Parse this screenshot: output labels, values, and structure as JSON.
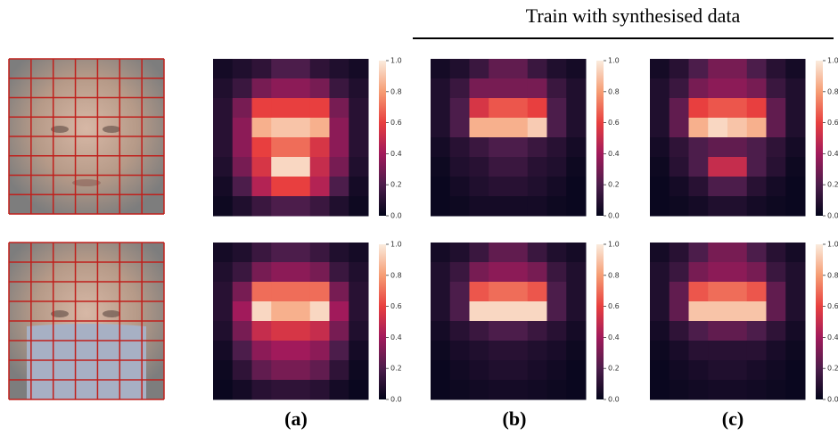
{
  "header": {
    "title": "Train with synthesised data"
  },
  "panel_labels": [
    "(a)",
    "(b)",
    "(c)"
  ],
  "chart_data": [
    {
      "type": "heatmap",
      "clim": [
        0,
        1
      ],
      "cticks": [
        {
          "value": 0,
          "label": "0.0"
        },
        {
          "value": 0.2,
          "label": "0.2"
        },
        {
          "value": 0.4,
          "label": "0.4"
        },
        {
          "value": 0.6,
          "label": "0.6"
        },
        {
          "value": 0.8,
          "label": "0.8"
        },
        {
          "value": 1,
          "label": "1.0"
        }
      ],
      "values": [
        [
          0.05,
          0.08,
          0.12,
          0.2,
          0.2,
          0.12,
          0.08,
          0.05
        ],
        [
          0.08,
          0.15,
          0.3,
          0.35,
          0.35,
          0.3,
          0.15,
          0.08
        ],
        [
          0.1,
          0.3,
          0.6,
          0.6,
          0.6,
          0.6,
          0.3,
          0.1
        ],
        [
          0.1,
          0.35,
          0.85,
          0.9,
          0.9,
          0.85,
          0.35,
          0.1
        ],
        [
          0.1,
          0.35,
          0.6,
          0.7,
          0.7,
          0.55,
          0.35,
          0.1
        ],
        [
          0.08,
          0.3,
          0.55,
          0.95,
          0.95,
          0.5,
          0.3,
          0.08
        ],
        [
          0.05,
          0.2,
          0.45,
          0.6,
          0.6,
          0.45,
          0.2,
          0.05
        ],
        [
          0.03,
          0.08,
          0.15,
          0.2,
          0.2,
          0.15,
          0.08,
          0.03
        ]
      ]
    },
    {
      "type": "heatmap",
      "clim": [
        0,
        1
      ],
      "cticks": [
        {
          "value": 0,
          "label": "0.0"
        },
        {
          "value": 0.2,
          "label": "0.2"
        },
        {
          "value": 0.4,
          "label": "0.4"
        },
        {
          "value": 0.6,
          "label": "0.6"
        },
        {
          "value": 0.8,
          "label": "0.8"
        },
        {
          "value": 1,
          "label": "1.0"
        }
      ],
      "values": [
        [
          0.05,
          0.08,
          0.15,
          0.25,
          0.25,
          0.15,
          0.08,
          0.05
        ],
        [
          0.08,
          0.15,
          0.3,
          0.3,
          0.3,
          0.3,
          0.15,
          0.08
        ],
        [
          0.08,
          0.2,
          0.55,
          0.65,
          0.65,
          0.6,
          0.2,
          0.08
        ],
        [
          0.08,
          0.2,
          0.85,
          0.85,
          0.85,
          0.92,
          0.2,
          0.08
        ],
        [
          0.05,
          0.1,
          0.15,
          0.2,
          0.2,
          0.15,
          0.1,
          0.05
        ],
        [
          0.03,
          0.08,
          0.1,
          0.15,
          0.15,
          0.1,
          0.08,
          0.03
        ],
        [
          0.02,
          0.05,
          0.08,
          0.1,
          0.1,
          0.08,
          0.05,
          0.02
        ],
        [
          0.02,
          0.03,
          0.05,
          0.05,
          0.05,
          0.05,
          0.03,
          0.02
        ]
      ]
    },
    {
      "type": "heatmap",
      "clim": [
        0,
        1
      ],
      "cticks": [
        {
          "value": 0,
          "label": "0.0"
        },
        {
          "value": 0.2,
          "label": "0.2"
        },
        {
          "value": 0.4,
          "label": "0.4"
        },
        {
          "value": 0.6,
          "label": "0.6"
        },
        {
          "value": 0.8,
          "label": "0.8"
        },
        {
          "value": 1,
          "label": "1.0"
        }
      ],
      "values": [
        [
          0.05,
          0.1,
          0.2,
          0.3,
          0.3,
          0.2,
          0.1,
          0.05
        ],
        [
          0.08,
          0.15,
          0.3,
          0.35,
          0.35,
          0.3,
          0.15,
          0.08
        ],
        [
          0.08,
          0.25,
          0.6,
          0.65,
          0.65,
          0.6,
          0.25,
          0.08
        ],
        [
          0.08,
          0.25,
          0.85,
          0.95,
          0.9,
          0.85,
          0.25,
          0.08
        ],
        [
          0.05,
          0.12,
          0.2,
          0.25,
          0.25,
          0.2,
          0.12,
          0.05
        ],
        [
          0.03,
          0.1,
          0.2,
          0.5,
          0.5,
          0.2,
          0.1,
          0.03
        ],
        [
          0.02,
          0.05,
          0.1,
          0.2,
          0.2,
          0.1,
          0.05,
          0.02
        ],
        [
          0.02,
          0.03,
          0.05,
          0.08,
          0.08,
          0.05,
          0.03,
          0.02
        ]
      ]
    },
    {
      "type": "heatmap",
      "clim": [
        0,
        1
      ],
      "cticks": [
        {
          "value": 0,
          "label": "0.0"
        },
        {
          "value": 0.2,
          "label": "0.2"
        },
        {
          "value": 0.4,
          "label": "0.4"
        },
        {
          "value": 0.6,
          "label": "0.6"
        },
        {
          "value": 0.8,
          "label": "0.8"
        },
        {
          "value": 1,
          "label": "1.0"
        }
      ],
      "values": [
        [
          0.05,
          0.08,
          0.15,
          0.2,
          0.2,
          0.15,
          0.08,
          0.05
        ],
        [
          0.08,
          0.15,
          0.3,
          0.35,
          0.35,
          0.3,
          0.15,
          0.08
        ],
        [
          0.1,
          0.3,
          0.7,
          0.7,
          0.7,
          0.7,
          0.3,
          0.1
        ],
        [
          0.1,
          0.4,
          0.95,
          0.85,
          0.85,
          0.95,
          0.4,
          0.1
        ],
        [
          0.08,
          0.3,
          0.5,
          0.55,
          0.55,
          0.5,
          0.3,
          0.08
        ],
        [
          0.05,
          0.2,
          0.35,
          0.4,
          0.4,
          0.35,
          0.2,
          0.05
        ],
        [
          0.03,
          0.12,
          0.25,
          0.3,
          0.3,
          0.25,
          0.12,
          0.03
        ],
        [
          0.02,
          0.05,
          0.1,
          0.12,
          0.12,
          0.1,
          0.05,
          0.02
        ]
      ]
    },
    {
      "type": "heatmap",
      "clim": [
        0,
        1
      ],
      "cticks": [
        {
          "value": 0,
          "label": "0.0"
        },
        {
          "value": 0.2,
          "label": "0.2"
        },
        {
          "value": 0.4,
          "label": "0.4"
        },
        {
          "value": 0.6,
          "label": "0.6"
        },
        {
          "value": 0.8,
          "label": "0.8"
        },
        {
          "value": 1,
          "label": "1.0"
        }
      ],
      "values": [
        [
          0.05,
          0.08,
          0.15,
          0.25,
          0.25,
          0.15,
          0.08,
          0.05
        ],
        [
          0.08,
          0.15,
          0.3,
          0.35,
          0.35,
          0.3,
          0.15,
          0.08
        ],
        [
          0.08,
          0.2,
          0.65,
          0.7,
          0.7,
          0.65,
          0.2,
          0.08
        ],
        [
          0.08,
          0.2,
          0.95,
          0.95,
          0.95,
          0.95,
          0.2,
          0.08
        ],
        [
          0.05,
          0.1,
          0.15,
          0.2,
          0.2,
          0.15,
          0.1,
          0.05
        ],
        [
          0.03,
          0.06,
          0.08,
          0.1,
          0.1,
          0.08,
          0.06,
          0.03
        ],
        [
          0.02,
          0.04,
          0.06,
          0.08,
          0.08,
          0.06,
          0.04,
          0.02
        ],
        [
          0.02,
          0.03,
          0.04,
          0.05,
          0.05,
          0.04,
          0.03,
          0.02
        ]
      ]
    },
    {
      "type": "heatmap",
      "clim": [
        0,
        1
      ],
      "cticks": [
        {
          "value": 0,
          "label": "0.0"
        },
        {
          "value": 0.2,
          "label": "0.2"
        },
        {
          "value": 0.4,
          "label": "0.4"
        },
        {
          "value": 0.6,
          "label": "0.6"
        },
        {
          "value": 0.8,
          "label": "0.8"
        },
        {
          "value": 1,
          "label": "1.0"
        }
      ],
      "values": [
        [
          0.05,
          0.1,
          0.2,
          0.3,
          0.3,
          0.2,
          0.1,
          0.05
        ],
        [
          0.08,
          0.15,
          0.3,
          0.35,
          0.35,
          0.3,
          0.15,
          0.08
        ],
        [
          0.08,
          0.25,
          0.65,
          0.7,
          0.7,
          0.65,
          0.25,
          0.08
        ],
        [
          0.08,
          0.25,
          0.9,
          0.9,
          0.9,
          0.9,
          0.25,
          0.08
        ],
        [
          0.05,
          0.12,
          0.2,
          0.25,
          0.25,
          0.2,
          0.12,
          0.05
        ],
        [
          0.03,
          0.06,
          0.1,
          0.1,
          0.1,
          0.1,
          0.06,
          0.03
        ],
        [
          0.02,
          0.04,
          0.06,
          0.08,
          0.08,
          0.06,
          0.04,
          0.02
        ],
        [
          0.02,
          0.03,
          0.04,
          0.05,
          0.05,
          0.04,
          0.03,
          0.02
        ]
      ]
    }
  ]
}
